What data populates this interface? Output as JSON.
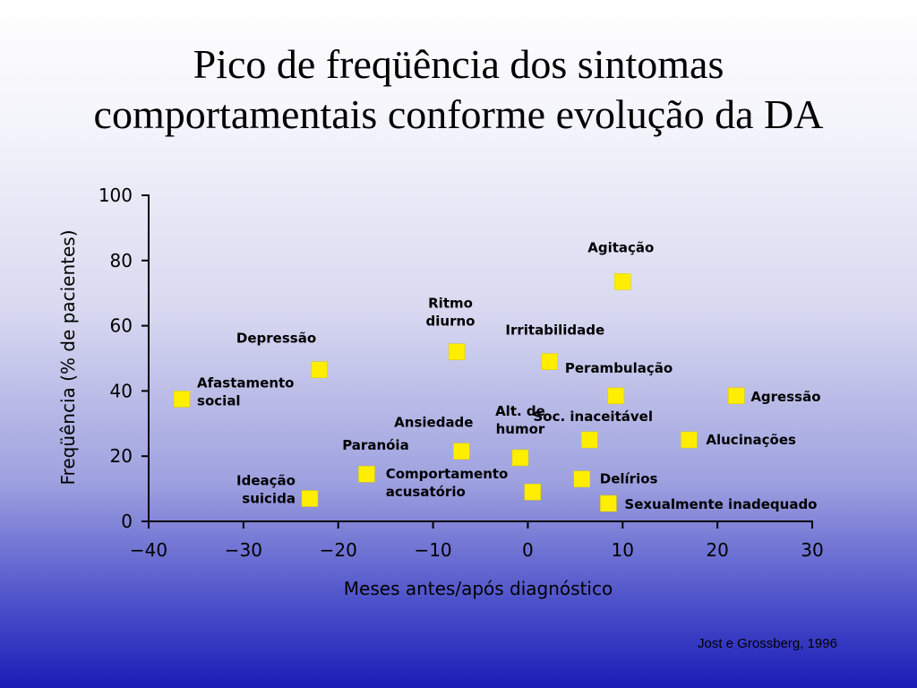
{
  "slide": {
    "title_line1": "Pico de freqüência dos sintomas",
    "title_line2": "comportamentais conforme evolução da DA",
    "credit": "Jost e Grossberg, 1996"
  },
  "chart_data": {
    "type": "scatter",
    "xlabel": "Meses antes/após diagnóstico",
    "ylabel": "Freqüência (% de pacientes)",
    "xlim": [
      -40,
      30
    ],
    "ylim": [
      0,
      100
    ],
    "xticks": [
      -40,
      -30,
      -20,
      -10,
      0,
      10,
      20,
      30
    ],
    "xtick_labels": [
      "−40",
      "−30",
      "−20",
      "−10",
      "0",
      "10",
      "20",
      "30"
    ],
    "yticks": [
      0,
      20,
      40,
      60,
      80,
      100
    ],
    "grid": false,
    "marker_color": "#ffee00",
    "points": [
      {
        "label": [
          "Afastamento",
          "social"
        ],
        "x": -36.5,
        "y": 37.5
      },
      {
        "label": [
          "Ideação",
          "suicida"
        ],
        "x": -23,
        "y": 7
      },
      {
        "label": [
          "Depressão"
        ],
        "x": -22,
        "y": 46.5
      },
      {
        "label": [
          "Paranóia"
        ],
        "x": -17,
        "y": 14.5
      },
      {
        "label": [
          "Ritmo",
          "diurno"
        ],
        "x": -7.5,
        "y": 52
      },
      {
        "label": [
          "Ansiedade"
        ],
        "x": -7,
        "y": 21.5
      },
      {
        "label": [
          "Alt. de",
          "humor"
        ],
        "x": -0.8,
        "y": 19.5
      },
      {
        "label": [
          "Comportamento",
          "acusatório"
        ],
        "x": 0.5,
        "y": 9
      },
      {
        "label": [
          "Irritabilidade"
        ],
        "x": 2.3,
        "y": 49
      },
      {
        "label": [
          "Delírios"
        ],
        "x": 5.7,
        "y": 13
      },
      {
        "label": [
          "Soc. inaceitável"
        ],
        "x": 6.5,
        "y": 25
      },
      {
        "label": [
          "Sexualmente inadequado"
        ],
        "x": 8.5,
        "y": 5.5
      },
      {
        "label": [
          "Perambulação"
        ],
        "x": 9.3,
        "y": 38.5
      },
      {
        "label": [
          "Agitação"
        ],
        "x": 10,
        "y": 73.5
      },
      {
        "label": [
          "Alucinações"
        ],
        "x": 17,
        "y": 25
      },
      {
        "label": [
          "Agressão"
        ],
        "x": 22,
        "y": 38.5
      }
    ]
  }
}
